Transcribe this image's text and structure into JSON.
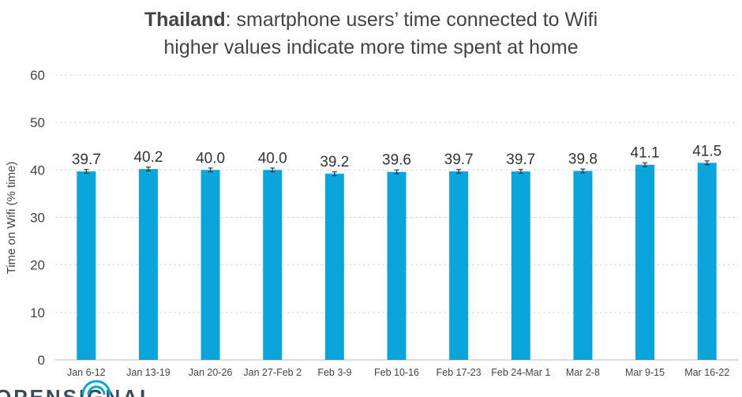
{
  "chart_data": {
    "type": "bar",
    "title_bold": "Thailand",
    "title_rest": ": smartphone users’ time connected to Wifi",
    "subtitle": "higher values indicate more time spent at home",
    "ylabel": "Time on Wifi (% time)",
    "xlabel": "",
    "ylim": [
      0,
      60
    ],
    "yticks": [
      0,
      10,
      20,
      30,
      40,
      50,
      60
    ],
    "grid": true,
    "categories": [
      "Jan 6-12",
      "Jan 13-19",
      "Jan 20-26",
      "Jan 27-Feb 2",
      "Feb 3-9",
      "Feb 10-16",
      "Feb 17-23",
      "Feb 24-Mar 1",
      "Mar 2-8",
      "Mar 9-15",
      "Mar 16-22"
    ],
    "values": [
      39.7,
      40.2,
      40.0,
      40.0,
      39.2,
      39.6,
      39.7,
      39.7,
      39.8,
      41.1,
      41.5
    ],
    "value_labels": [
      "39.7",
      "40.2",
      "40.0",
      "40.0",
      "39.2",
      "39.6",
      "39.7",
      "39.7",
      "39.8",
      "41.1",
      "41.5"
    ],
    "error": [
      0.4,
      0.4,
      0.4,
      0.4,
      0.4,
      0.4,
      0.4,
      0.4,
      0.4,
      0.4,
      0.4
    ],
    "bar_color": "#0aa5dc",
    "grid_color": "#d9d9d9"
  },
  "brand": {
    "text": "OPENSIGNAL"
  }
}
